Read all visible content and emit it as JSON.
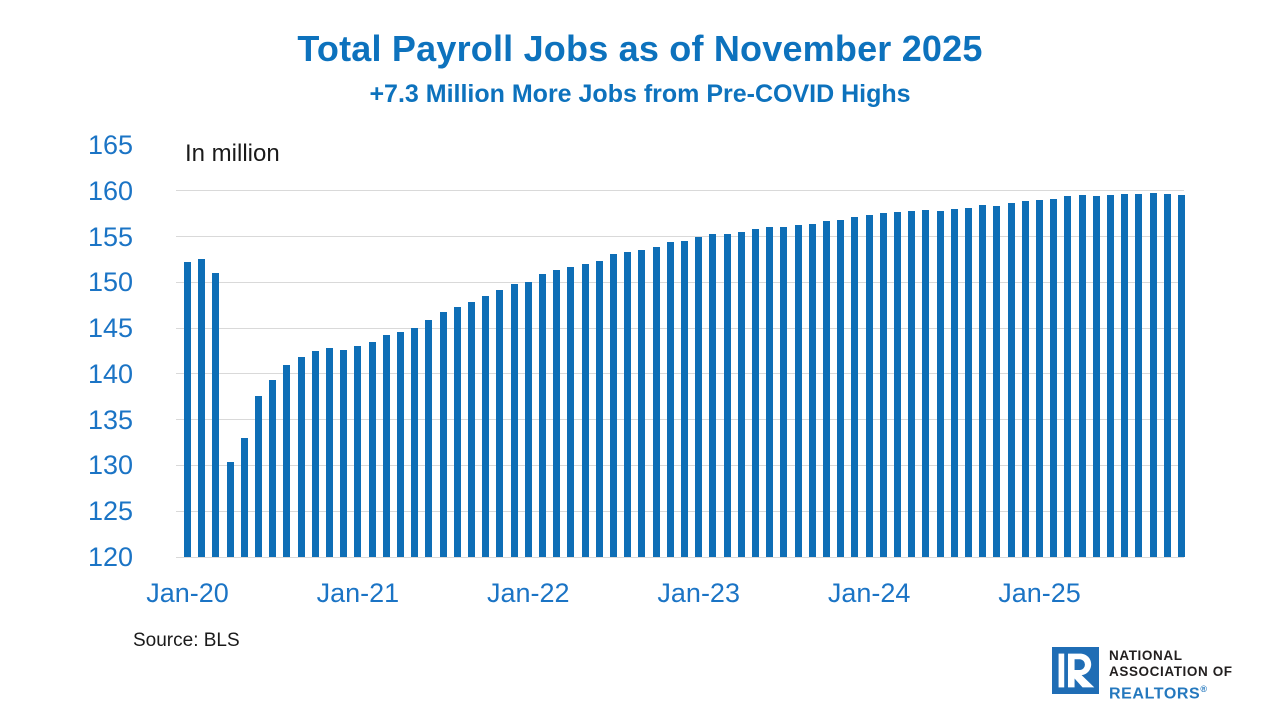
{
  "title": "Total Payroll Jobs as of November 2025",
  "subtitle": "+7.3 Million More Jobs from Pre-COVID Highs",
  "units_label": "In million",
  "source_note": "Source: BLS",
  "logo": {
    "line1": "NATIONAL",
    "line2": "ASSOCIATION OF",
    "line3": "REALTORS",
    "registered_mark": "®",
    "mark_letter": "R"
  },
  "colors": {
    "bar": "#0E6EB6",
    "grid": "#D9D9D9",
    "title": "#0D72BD",
    "axis_label": "#1B74C5",
    "text": "#1A1A1A",
    "logo_blue": "#1F6DB5",
    "realtors_blue": "#2478BE"
  },
  "chart_data": {
    "type": "bar",
    "title": "Total Payroll Jobs as of November 2025",
    "subtitle": "+7.3 Million More Jobs from Pre-COVID Highs",
    "ylabel": "In million",
    "ylim": [
      120,
      165
    ],
    "ytick_step": 5,
    "yticks": [
      165,
      160,
      155,
      150,
      145,
      140,
      135,
      130,
      125,
      120
    ],
    "grid": "horizontal",
    "legend": "none",
    "x_tick_interval": 12,
    "x_tick_labels": [
      "Jan-20",
      "Jan-21",
      "Jan-22",
      "Jan-23",
      "Jan-24",
      "Jan-25"
    ],
    "categories": [
      "Jan-20",
      "Feb-20",
      "Mar-20",
      "Apr-20",
      "May-20",
      "Jun-20",
      "Jul-20",
      "Aug-20",
      "Sep-20",
      "Oct-20",
      "Nov-20",
      "Dec-20",
      "Jan-21",
      "Feb-21",
      "Mar-21",
      "Apr-21",
      "May-21",
      "Jun-21",
      "Jul-21",
      "Aug-21",
      "Sep-21",
      "Oct-21",
      "Nov-21",
      "Dec-21",
      "Jan-22",
      "Feb-22",
      "Mar-22",
      "Apr-22",
      "May-22",
      "Jun-22",
      "Jul-22",
      "Aug-22",
      "Sep-22",
      "Oct-22",
      "Nov-22",
      "Dec-22",
      "Jan-23",
      "Feb-23",
      "Mar-23",
      "Apr-23",
      "May-23",
      "Jun-23",
      "Jul-23",
      "Aug-23",
      "Sep-23",
      "Oct-23",
      "Nov-23",
      "Dec-23",
      "Jan-24",
      "Feb-24",
      "Mar-24",
      "Apr-24",
      "May-24",
      "Jun-24",
      "Jul-24",
      "Aug-24",
      "Sep-24",
      "Oct-24",
      "Nov-24",
      "Dec-24",
      "Jan-25",
      "Feb-25",
      "Mar-25",
      "Apr-25",
      "May-25",
      "Jun-25",
      "Jul-25",
      "Aug-25",
      "Sep-25",
      "Oct-25",
      "Nov-25"
    ],
    "values": [
      152.2,
      152.5,
      151.0,
      130.4,
      133.0,
      137.6,
      139.3,
      141.0,
      141.8,
      142.5,
      142.8,
      142.6,
      143.0,
      143.5,
      144.3,
      144.6,
      145.0,
      145.9,
      146.8,
      147.3,
      147.8,
      148.5,
      149.2,
      149.8,
      150.0,
      150.9,
      151.4,
      151.7,
      152.0,
      152.3,
      153.1,
      153.3,
      153.5,
      153.9,
      154.4,
      154.5,
      154.9,
      155.3,
      155.3,
      155.5,
      155.8,
      156.0,
      156.1,
      156.3,
      156.4,
      156.7,
      156.8,
      157.1,
      157.4,
      157.6,
      157.7,
      157.8,
      157.9,
      157.8,
      158.0,
      158.1,
      158.4,
      158.3,
      158.7,
      158.9,
      159.0,
      159.1,
      159.4,
      159.5,
      159.4,
      159.5,
      159.6,
      159.6,
      159.8,
      159.6,
      159.5
    ]
  }
}
